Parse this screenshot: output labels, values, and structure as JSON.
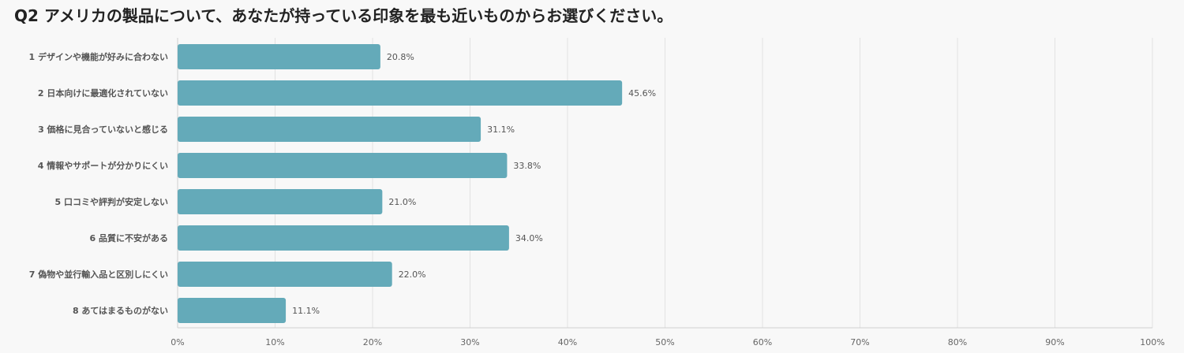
{
  "chart_data": {
    "type": "bar",
    "orientation": "horizontal",
    "title": "Q2 アメリカの製品について、あなたが持っている印象を最も近いものからお選びください。",
    "categories": [
      "1 デザインや機能が好みに合わない",
      "2 日本向けに最適化されていない",
      "3 価格に見合っていないと感じる",
      "4 情報やサポートが分かりにくい",
      "5 口コミや評判が安定しない",
      "6 品質に不安がある",
      "7 偽物や並行輸入品と区別しにくい",
      "8 あてはまるものがない"
    ],
    "values": [
      20.8,
      45.6,
      31.1,
      33.8,
      21.0,
      34.0,
      22.0,
      11.1
    ],
    "value_labels": [
      "20.8%",
      "45.6%",
      "31.1%",
      "33.8%",
      "21.0%",
      "34.0%",
      "22.0%",
      "11.1%"
    ],
    "x_ticks": [
      "0%",
      "10%",
      "20%",
      "30%",
      "40%",
      "50%",
      "60%",
      "70%",
      "80%",
      "90%",
      "100%"
    ],
    "xlim": [
      0,
      100
    ],
    "grid": true,
    "bar_color": "#64aab9"
  }
}
